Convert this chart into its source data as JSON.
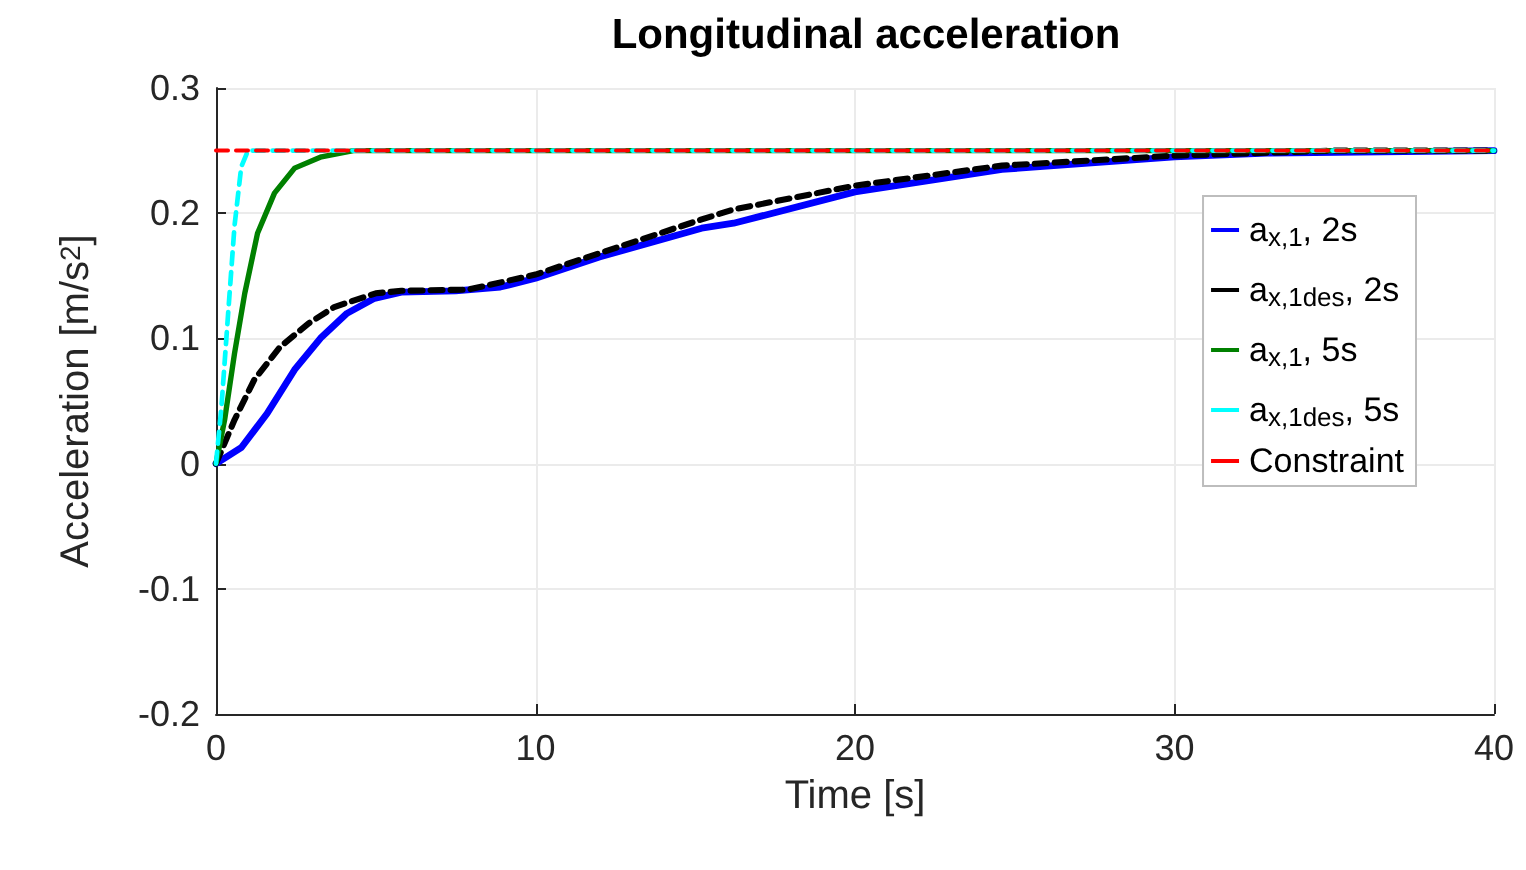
{
  "chart_data": {
    "type": "line",
    "title": "Longitudinal acceleration",
    "xlabel": "Time [s]",
    "ylabel": "Acceleration [m/s$^{2}$]",
    "xlim": [
      0,
      40
    ],
    "xticks": [
      0,
      10,
      20,
      30,
      40
    ],
    "ylim": [
      -0.2,
      0.3
    ],
    "yticks": [
      -0.2,
      -0.1,
      0,
      0.1,
      0.2,
      0.3
    ],
    "grid": true,
    "legend": "right",
    "marker": "none",
    "series": [
      {
        "name": "a$_{x,1}$, 2s",
        "color": "#0000ff",
        "line_style": "solid",
        "x": [
          0,
          0.8,
          1.6,
          2.46,
          3.3,
          4.1,
          4.96,
          5.8,
          7.5,
          8.9,
          10,
          12,
          15.2,
          16.2,
          20,
          24.6,
          30,
          32.9,
          40
        ],
        "values": [
          0,
          0.013,
          0.04,
          0.075,
          0.101,
          0.12,
          0.132,
          0.137,
          0.138,
          0.141,
          0.148,
          0.165,
          0.188,
          0.192,
          0.217,
          0.235,
          0.245,
          0.248,
          0.25
        ]
      },
      {
        "name": "a$_{x,1des}$, 2s",
        "color": "#000000",
        "line_style": "dashed",
        "x": [
          0,
          0.58,
          1.2,
          2,
          2.9,
          3.7,
          5,
          5.8,
          7.9,
          10,
          12,
          15.2,
          16.2,
          20,
          24.6,
          30,
          35,
          40
        ],
        "values": [
          0,
          0.035,
          0.067,
          0.093,
          0.112,
          0.125,
          0.136,
          0.138,
          0.139,
          0.151,
          0.168,
          0.195,
          0.203,
          0.222,
          0.238,
          0.246,
          0.25,
          0.25
        ]
      },
      {
        "name": "a$_{x,1}$, 5s",
        "color": "#008000",
        "line_style": "solid",
        "x": [
          0,
          0.27,
          0.58,
          0.9,
          1.3,
          1.83,
          2.46,
          3.3,
          4.3,
          6,
          40
        ],
        "values": [
          0,
          0.035,
          0.088,
          0.136,
          0.184,
          0.216,
          0.236,
          0.245,
          0.25,
          0.25,
          0.25
        ]
      },
      {
        "name": "a$_{x,1des}$, 5s",
        "color": "#00ffff",
        "line_style": "dashed",
        "x": [
          0,
          0.17,
          0.38,
          0.58,
          0.79,
          1,
          40
        ],
        "values": [
          0,
          0.045,
          0.12,
          0.19,
          0.237,
          0.25,
          0.25
        ]
      },
      {
        "name": "Constraint",
        "color": "#ff0000",
        "line_style": "dashed",
        "x": [
          0,
          40
        ],
        "values": [
          0.25,
          0.25
        ]
      }
    ]
  }
}
